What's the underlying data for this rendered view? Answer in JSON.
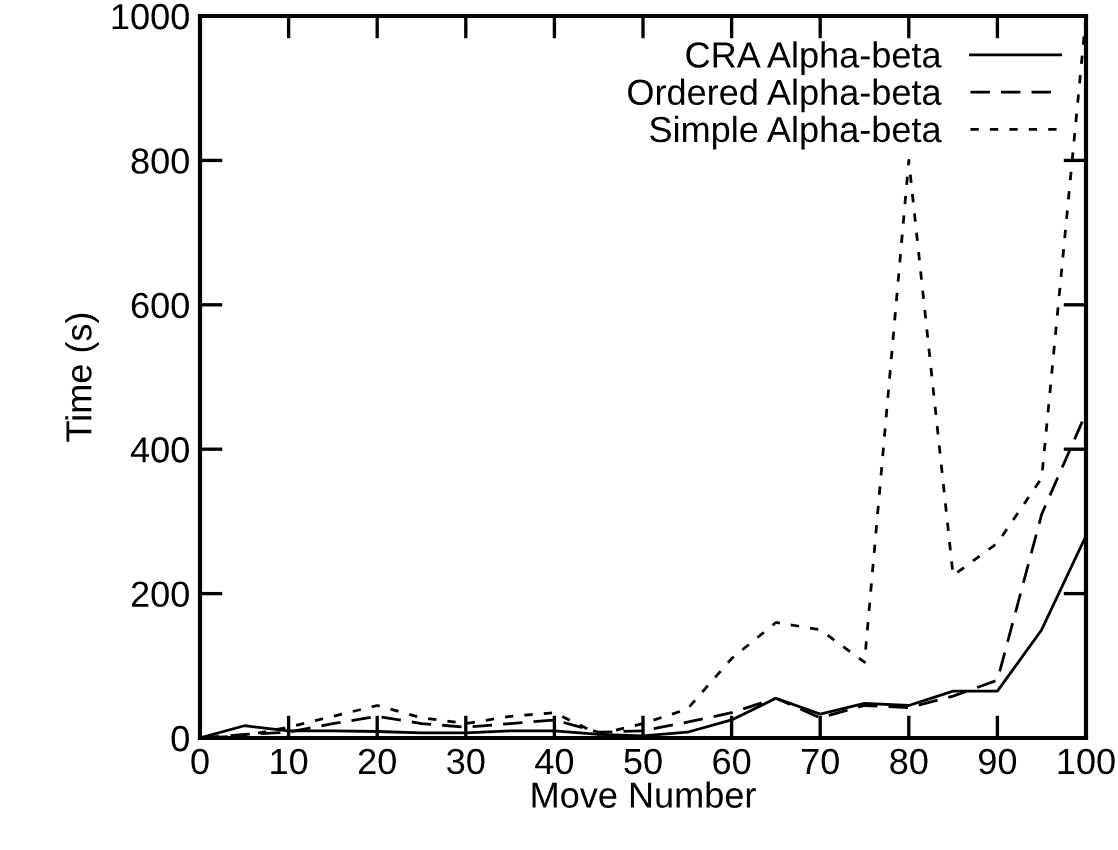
{
  "chart_data": {
    "type": "line",
    "xlabel": "Move Number",
    "ylabel": "Time (s)",
    "x": [
      0,
      5,
      10,
      15,
      20,
      25,
      30,
      35,
      40,
      45,
      50,
      55,
      60,
      65,
      70,
      75,
      80,
      85,
      90,
      95,
      100
    ],
    "series": [
      {
        "name": "CRA Alpha-beta",
        "color": "#000000",
        "line_style": "solid",
        "values": [
          0,
          17,
          10,
          10,
          9,
          7,
          7,
          10,
          10,
          5,
          3,
          8,
          25,
          55,
          33,
          48,
          45,
          65,
          65,
          150,
          280
        ]
      },
      {
        "name": "Ordered Alpha-beta",
        "color": "#000000",
        "line_style": "dashed",
        "values": [
          0,
          5,
          8,
          20,
          30,
          20,
          15,
          20,
          25,
          8,
          10,
          22,
          35,
          55,
          28,
          45,
          42,
          58,
          80,
          310,
          450
        ]
      },
      {
        "name": "Simple Alpha-beta",
        "color": "#000000",
        "line_style": "dotted",
        "values": [
          0,
          3,
          15,
          30,
          45,
          28,
          20,
          30,
          35,
          5,
          20,
          40,
          110,
          160,
          150,
          105,
          800,
          225,
          270,
          360,
          1000
        ]
      }
    ],
    "xlim": [
      0,
      100
    ],
    "ylim": [
      0,
      1000
    ],
    "xticks": [
      0,
      10,
      20,
      30,
      40,
      50,
      60,
      70,
      80,
      90,
      100
    ],
    "yticks": [
      0,
      200,
      400,
      600,
      800,
      1000
    ],
    "grid": false,
    "legend": "top right",
    "marker": "none"
  }
}
